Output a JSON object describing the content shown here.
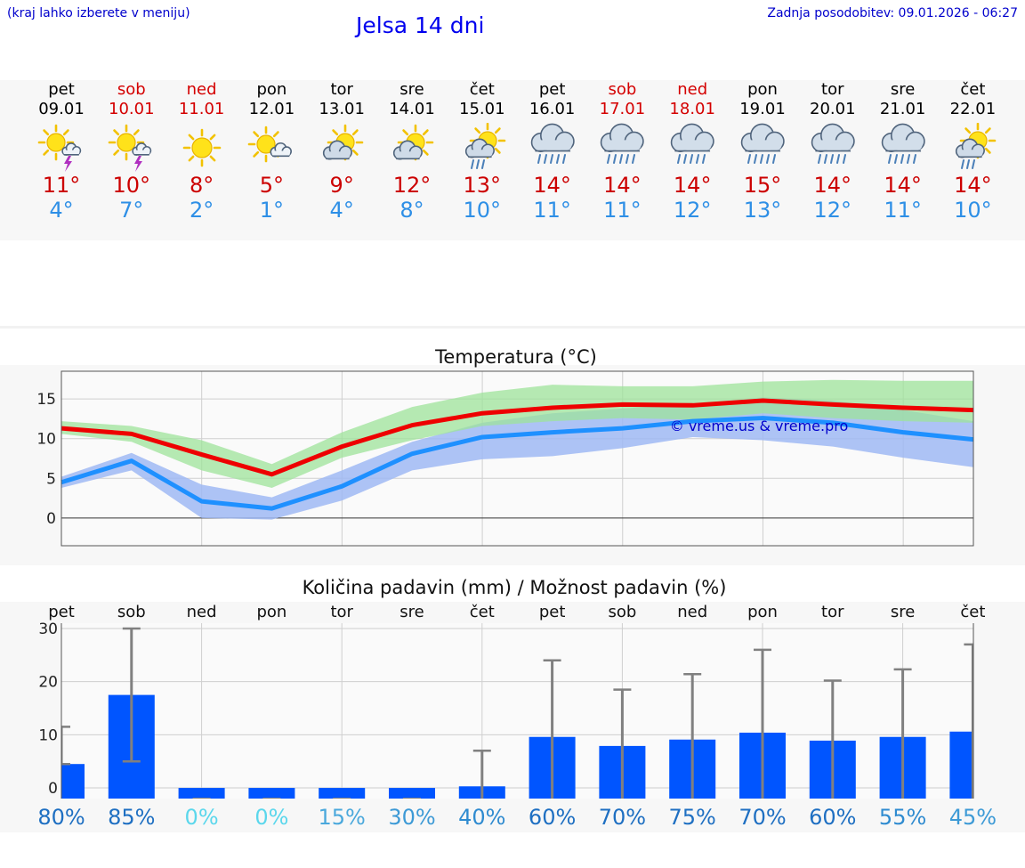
{
  "header": {
    "hint": "(kraj lahko izberete v meniju)",
    "title": "Jelsa 14 dni",
    "updated": "Zadnja posodobitev: 09.01.2026 - 06:27"
  },
  "days": [
    {
      "name": "pet",
      "date": "09.01",
      "weekend": false,
      "icon": "sun-cloud-thunder-icon",
      "tmax": "11°",
      "tmin": "4°"
    },
    {
      "name": "sob",
      "date": "10.01",
      "weekend": true,
      "icon": "sun-cloud-thunder-icon",
      "tmax": "10°",
      "tmin": "7°"
    },
    {
      "name": "ned",
      "date": "11.01",
      "weekend": true,
      "icon": "sun-icon",
      "tmax": "8°",
      "tmin": "2°"
    },
    {
      "name": "pon",
      "date": "12.01",
      "weekend": false,
      "icon": "sun-small-cloud-icon",
      "tmax": "5°",
      "tmin": "1°"
    },
    {
      "name": "tor",
      "date": "13.01",
      "weekend": false,
      "icon": "sun-cloud-icon",
      "tmax": "9°",
      "tmin": "4°"
    },
    {
      "name": "sre",
      "date": "14.01",
      "weekend": false,
      "icon": "sun-cloud-icon",
      "tmax": "12°",
      "tmin": "8°"
    },
    {
      "name": "čet",
      "date": "15.01",
      "weekend": false,
      "icon": "sun-cloud-rain-icon",
      "tmax": "13°",
      "tmin": "10°"
    },
    {
      "name": "pet",
      "date": "16.01",
      "weekend": false,
      "icon": "cloud-rain-icon",
      "tmax": "14°",
      "tmin": "11°"
    },
    {
      "name": "sob",
      "date": "17.01",
      "weekend": true,
      "icon": "cloud-rain-icon",
      "tmax": "14°",
      "tmin": "11°"
    },
    {
      "name": "ned",
      "date": "18.01",
      "weekend": true,
      "icon": "cloud-rain-icon",
      "tmax": "14°",
      "tmin": "12°"
    },
    {
      "name": "pon",
      "date": "19.01",
      "weekend": false,
      "icon": "cloud-rain-icon",
      "tmax": "15°",
      "tmin": "13°"
    },
    {
      "name": "tor",
      "date": "20.01",
      "weekend": false,
      "icon": "cloud-rain-icon",
      "tmax": "14°",
      "tmin": "12°"
    },
    {
      "name": "sre",
      "date": "21.01",
      "weekend": false,
      "icon": "cloud-rain-icon",
      "tmax": "14°",
      "tmin": "11°"
    },
    {
      "name": "čet",
      "date": "22.01",
      "weekend": false,
      "icon": "sun-cloud-rain-icon",
      "tmax": "14°",
      "tmin": "10°"
    }
  ],
  "colors": {
    "max_line": "#ee0000",
    "min_line": "#1e90ff",
    "max_band": "#9ee39a",
    "min_band": "#9fb8f3",
    "overlap_band": "#6fc3a4",
    "bar": "#0055ff",
    "errbar": "#808080"
  },
  "chart_data": [
    {
      "type": "line",
      "title": "Temperatura (°C)",
      "watermark": "© vreme.us & vreme.pro",
      "x": [
        0,
        1,
        2,
        3,
        4,
        5,
        6,
        7,
        8,
        9,
        10,
        11,
        12,
        13
      ],
      "ylim": [
        -3.5,
        18.5
      ],
      "yticks": [
        0,
        5,
        10,
        15
      ],
      "grid": true,
      "series": [
        {
          "name": "max",
          "values": [
            11.3,
            10.6,
            8.0,
            5.5,
            9.0,
            11.7,
            13.2,
            13.9,
            14.3,
            14.2,
            14.8,
            14.3,
            13.9,
            13.6
          ]
        },
        {
          "name": "min",
          "values": [
            4.5,
            7.2,
            2.1,
            1.2,
            4.0,
            8.1,
            10.2,
            10.8,
            11.3,
            12.2,
            12.6,
            12.0,
            10.8,
            9.9
          ]
        }
      ],
      "bands": [
        {
          "name": "max_range",
          "low": [
            10.6,
            9.6,
            6.0,
            3.8,
            7.6,
            9.8,
            11.6,
            12.2,
            12.6,
            12.4,
            13.2,
            12.6,
            12.2,
            12.0
          ],
          "high": [
            12.2,
            11.6,
            9.8,
            6.8,
            10.8,
            14.0,
            15.8,
            16.8,
            16.6,
            16.6,
            17.2,
            17.4,
            17.3,
            17.3
          ]
        },
        {
          "name": "min_range",
          "low": [
            3.8,
            6.0,
            0.0,
            -0.2,
            2.2,
            6.0,
            7.4,
            7.8,
            8.8,
            10.2,
            9.8,
            9.0,
            7.6,
            6.4
          ],
          "high": [
            5.2,
            8.2,
            4.2,
            2.6,
            6.0,
            9.6,
            12.0,
            13.2,
            13.8,
            14.4,
            15.2,
            14.8,
            13.6,
            12.2
          ]
        }
      ]
    },
    {
      "type": "bar",
      "title": "Količina padavin (mm) / Možnost padavin (%)",
      "categories": [
        "pet",
        "sob",
        "ned",
        "pon",
        "tor",
        "sre",
        "čet",
        "pet",
        "sob",
        "ned",
        "pon",
        "tor",
        "sre",
        "čet"
      ],
      "values": [
        4.5,
        17.5,
        0,
        0,
        0,
        0,
        0.3,
        9.6,
        7.9,
        9.1,
        10.4,
        8.9,
        9.6,
        10.6
      ],
      "error_low": [
        4.5,
        5.0,
        0,
        0,
        0,
        0,
        0,
        0,
        0,
        0,
        0,
        0,
        0,
        0
      ],
      "error_high": [
        11.5,
        30.0,
        0,
        0,
        0,
        0,
        7.0,
        24.0,
        18.5,
        21.4,
        26.0,
        20.2,
        22.3,
        27.0
      ],
      "probabilities": [
        "80%",
        "85%",
        "0%",
        "0%",
        "15%",
        "30%",
        "40%",
        "60%",
        "70%",
        "75%",
        "70%",
        "60%",
        "55%",
        "45%"
      ],
      "prob_colors": [
        "#1e6fc2",
        "#1e6fc2",
        "#5bd7ec",
        "#5bd7ec",
        "#4aa8dc",
        "#3d9ad6",
        "#2f8bd0",
        "#1e6fc2",
        "#1e6fc2",
        "#1e6fc2",
        "#1e6fc2",
        "#1e6fc2",
        "#2f8bd0",
        "#3d9ad6"
      ],
      "ylim": [
        -2,
        31
      ],
      "yticks": [
        0,
        10,
        20,
        30
      ],
      "grid": true
    }
  ]
}
